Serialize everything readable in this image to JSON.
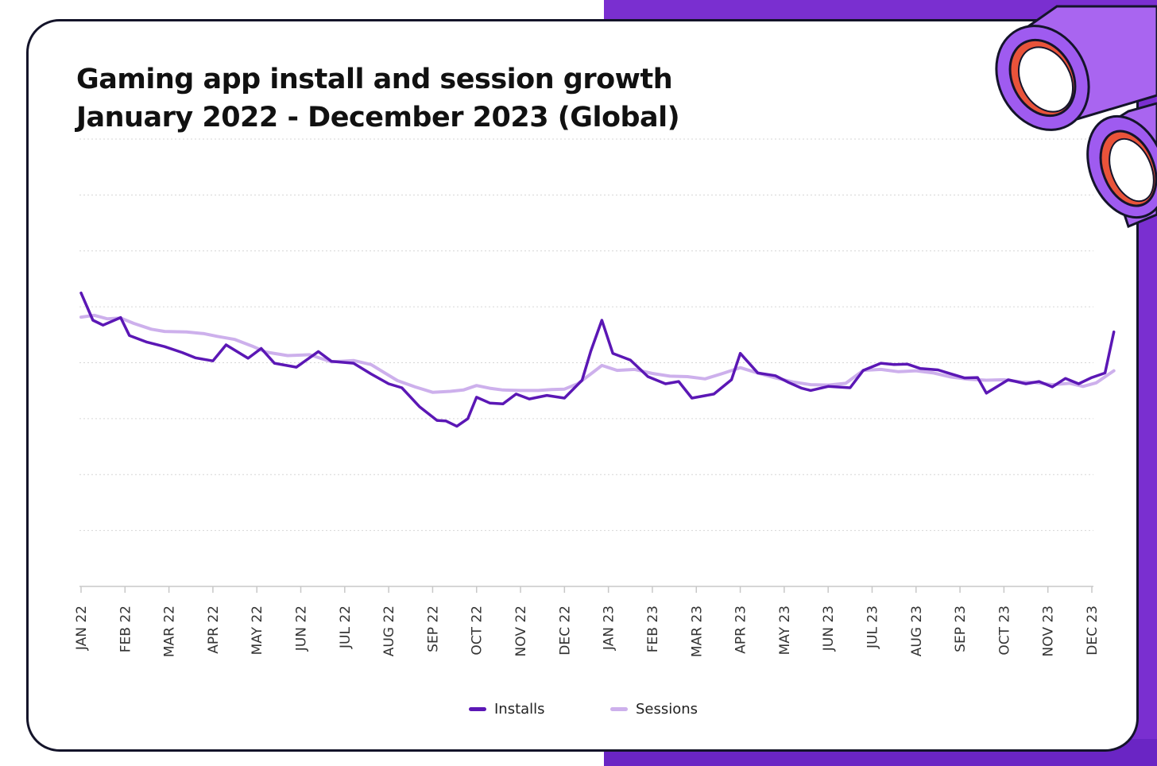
{
  "title_line1": "Gaming app install and session growth",
  "title_line2": "January 2022 - December 2023 (Global)",
  "colors": {
    "installs": "#5b17b5",
    "sessions": "#cdb0ec",
    "gridline": "#d6d6d6",
    "background_accent": "#7a2fd0"
  },
  "chart_data": {
    "type": "line",
    "grid": true,
    "legend_position": "bottom-center",
    "y_ticks_shown": false,
    "ylim": [
      0,
      100
    ],
    "categories": [
      "JAN 22",
      "FEB 22",
      "MAR 22",
      "APR 22",
      "MAY 22",
      "JUN 22",
      "JUL 22",
      "AUG 22",
      "SEP 22",
      "OCT 22",
      "NOV 22",
      "DEC 22",
      "JAN 23",
      "FEB 23",
      "MAR 23",
      "APR 23",
      "MAY 23",
      "JUN 23",
      "JUL 23",
      "AUG 23",
      "SEP 23",
      "OCT 23",
      "NOV 23",
      "DEC 23"
    ],
    "x_range": [
      0,
      23
    ],
    "series": [
      {
        "name": "Installs",
        "points": [
          [
            0,
            65.6
          ],
          [
            0.27,
            59.5
          ],
          [
            0.5,
            58.4
          ],
          [
            0.9,
            60.1
          ],
          [
            1.1,
            56.1
          ],
          [
            1.5,
            54.6
          ],
          [
            1.9,
            53.6
          ],
          [
            2.3,
            52.3
          ],
          [
            2.6,
            51.1
          ],
          [
            3.0,
            50.4
          ],
          [
            3.3,
            54.0
          ],
          [
            3.8,
            51.0
          ],
          [
            4.1,
            53.2
          ],
          [
            4.4,
            49.9
          ],
          [
            4.9,
            49.0
          ],
          [
            5.4,
            52.5
          ],
          [
            5.7,
            50.3
          ],
          [
            6.2,
            49.9
          ],
          [
            6.6,
            47.5
          ],
          [
            7.0,
            45.3
          ],
          [
            7.3,
            44.4
          ],
          [
            7.7,
            40.2
          ],
          [
            8.1,
            37.1
          ],
          [
            8.3,
            37.0
          ],
          [
            8.55,
            35.8
          ],
          [
            8.8,
            37.5
          ],
          [
            9.0,
            42.3
          ],
          [
            9.3,
            41.0
          ],
          [
            9.6,
            40.8
          ],
          [
            9.9,
            43.0
          ],
          [
            10.2,
            41.9
          ],
          [
            10.6,
            42.7
          ],
          [
            11.0,
            42.1
          ],
          [
            11.4,
            46.1
          ],
          [
            11.6,
            52.6
          ],
          [
            11.85,
            59.5
          ],
          [
            12.1,
            52.1
          ],
          [
            12.5,
            50.6
          ],
          [
            12.9,
            46.9
          ],
          [
            13.3,
            45.3
          ],
          [
            13.6,
            45.8
          ],
          [
            13.9,
            42.1
          ],
          [
            14.4,
            43.0
          ],
          [
            14.8,
            46.2
          ],
          [
            15.0,
            52.1
          ],
          [
            15.4,
            47.7
          ],
          [
            15.8,
            47.1
          ],
          [
            16.1,
            45.6
          ],
          [
            16.4,
            44.3
          ],
          [
            16.6,
            43.8
          ],
          [
            17.0,
            44.7
          ],
          [
            17.5,
            44.4
          ],
          [
            17.8,
            48.3
          ],
          [
            18.2,
            49.9
          ],
          [
            18.5,
            49.6
          ],
          [
            18.8,
            49.7
          ],
          [
            19.1,
            48.7
          ],
          [
            19.5,
            48.4
          ],
          [
            19.7,
            47.8
          ],
          [
            20.1,
            46.6
          ],
          [
            20.4,
            46.7
          ],
          [
            20.6,
            43.2
          ],
          [
            21.1,
            46.2
          ],
          [
            21.5,
            45.3
          ],
          [
            21.8,
            45.8
          ],
          [
            22.1,
            44.6
          ],
          [
            22.4,
            46.5
          ],
          [
            22.7,
            45.3
          ],
          [
            23.0,
            46.7
          ],
          [
            23.3,
            47.7
          ],
          [
            23.5,
            56.9
          ]
        ]
      },
      {
        "name": "Sessions",
        "points": [
          [
            0,
            60.2
          ],
          [
            0.3,
            60.6
          ],
          [
            0.6,
            59.8
          ],
          [
            0.9,
            60.0
          ],
          [
            1.2,
            58.8
          ],
          [
            1.6,
            57.5
          ],
          [
            1.9,
            57.0
          ],
          [
            2.4,
            56.9
          ],
          [
            2.8,
            56.5
          ],
          [
            3.1,
            55.9
          ],
          [
            3.5,
            55.2
          ],
          [
            3.9,
            53.7
          ],
          [
            4.2,
            52.4
          ],
          [
            4.7,
            51.6
          ],
          [
            5.2,
            51.8
          ],
          [
            5.7,
            50.2
          ],
          [
            6.2,
            50.5
          ],
          [
            6.6,
            49.6
          ],
          [
            6.9,
            47.8
          ],
          [
            7.2,
            46.0
          ],
          [
            7.6,
            44.6
          ],
          [
            8.0,
            43.4
          ],
          [
            8.4,
            43.6
          ],
          [
            8.7,
            43.9
          ],
          [
            9.0,
            44.9
          ],
          [
            9.3,
            44.3
          ],
          [
            9.6,
            43.9
          ],
          [
            10.0,
            43.8
          ],
          [
            10.4,
            43.8
          ],
          [
            10.7,
            44.0
          ],
          [
            11.0,
            44.1
          ],
          [
            11.3,
            45.3
          ],
          [
            11.6,
            47.5
          ],
          [
            11.85,
            49.4
          ],
          [
            12.2,
            48.3
          ],
          [
            12.6,
            48.5
          ],
          [
            13.0,
            47.6
          ],
          [
            13.4,
            47.0
          ],
          [
            13.8,
            46.9
          ],
          [
            14.2,
            46.4
          ],
          [
            14.6,
            47.6
          ],
          [
            15.0,
            48.9
          ],
          [
            15.4,
            47.7
          ],
          [
            15.8,
            46.6
          ],
          [
            16.2,
            45.7
          ],
          [
            16.6,
            45.1
          ],
          [
            17.0,
            45.0
          ],
          [
            17.4,
            45.4
          ],
          [
            17.8,
            48.3
          ],
          [
            18.2,
            48.5
          ],
          [
            18.6,
            48.0
          ],
          [
            19.0,
            48.2
          ],
          [
            19.4,
            47.7
          ],
          [
            19.8,
            46.8
          ],
          [
            20.2,
            46.3
          ],
          [
            20.6,
            46.1
          ],
          [
            21.0,
            46.2
          ],
          [
            21.4,
            45.7
          ],
          [
            21.7,
            45.6
          ],
          [
            22.1,
            45.1
          ],
          [
            22.5,
            45.4
          ],
          [
            22.8,
            44.7
          ],
          [
            23.1,
            45.5
          ],
          [
            23.5,
            48.2
          ]
        ]
      }
    ]
  },
  "legend": {
    "installs_label": "Installs",
    "sessions_label": "Sessions"
  }
}
